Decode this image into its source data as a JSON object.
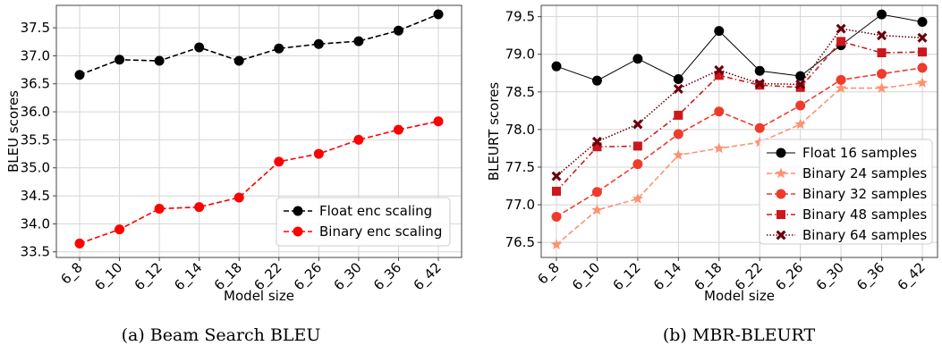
{
  "chart_data": [
    {
      "type": "line",
      "caption": "(a) Beam Search BLEU",
      "xlabel": "Model size",
      "ylabel": "BLEU scores",
      "categories": [
        "6_8",
        "6_10",
        "6_12",
        "6_14",
        "6_18",
        "6_22",
        "6_26",
        "6_30",
        "6_36",
        "6_42"
      ],
      "yticks": [
        "33.5",
        "34.0",
        "34.5",
        "35.0",
        "35.5",
        "36.0",
        "36.5",
        "37.0",
        "37.5"
      ],
      "ylim": [
        33.4,
        37.9
      ],
      "grid": true,
      "legend_position": "bottom-right",
      "series": [
        {
          "name": "Float enc scaling",
          "color": "#000000",
          "marker": "circle",
          "dash": "dashed",
          "values": [
            36.66,
            36.93,
            36.91,
            37.15,
            36.91,
            37.13,
            37.21,
            37.26,
            37.45,
            37.74
          ]
        },
        {
          "name": "Binary enc scaling",
          "color": "#ff0000",
          "marker": "circle",
          "dash": "dashed",
          "values": [
            33.65,
            33.9,
            34.27,
            34.3,
            34.47,
            35.11,
            35.25,
            35.5,
            35.68,
            35.83
          ]
        }
      ]
    },
    {
      "type": "line",
      "caption": "(b) MBR-BLEURT",
      "xlabel": "Model size",
      "ylabel": "BLEURT scores",
      "categories": [
        "6_8",
        "6_10",
        "6_12",
        "6_14",
        "6_18",
        "6_22",
        "6_26",
        "6_30",
        "6_36",
        "6_42"
      ],
      "yticks": [
        "76.5",
        "77.0",
        "77.5",
        "78.0",
        "78.5",
        "79.0",
        "79.5"
      ],
      "ylim": [
        76.3,
        79.65
      ],
      "grid": true,
      "legend_position": "bottom-right",
      "series": [
        {
          "name": "Float 16 samples",
          "color": "#000000",
          "marker": "circle",
          "dash": "solid",
          "values": [
            78.84,
            78.65,
            78.94,
            78.67,
            79.31,
            78.78,
            78.71,
            79.12,
            79.53,
            79.43
          ]
        },
        {
          "name": "Binary 24 samples",
          "color": "#fc9272",
          "marker": "star",
          "dash": "dashed",
          "values": [
            76.47,
            76.93,
            77.08,
            77.66,
            77.75,
            77.83,
            78.07,
            78.55,
            78.55,
            78.62
          ]
        },
        {
          "name": "Binary 32 samples",
          "color": "#ef3b2c",
          "marker": "circle",
          "dash": "dashed",
          "values": [
            76.84,
            77.17,
            77.54,
            77.94,
            78.24,
            78.02,
            78.32,
            78.66,
            78.74,
            78.82
          ]
        },
        {
          "name": "Binary 48 samples",
          "color": "#cb181d",
          "marker": "square",
          "dash": "dashdot",
          "values": [
            77.18,
            77.77,
            77.78,
            78.19,
            78.72,
            78.59,
            78.56,
            79.17,
            79.02,
            79.03
          ]
        },
        {
          "name": "Binary 64 samples",
          "color": "#67000d",
          "marker": "x",
          "dash": "dotted",
          "values": [
            77.38,
            77.84,
            78.07,
            78.54,
            78.79,
            78.61,
            78.6,
            79.34,
            79.25,
            79.22
          ]
        }
      ]
    }
  ]
}
